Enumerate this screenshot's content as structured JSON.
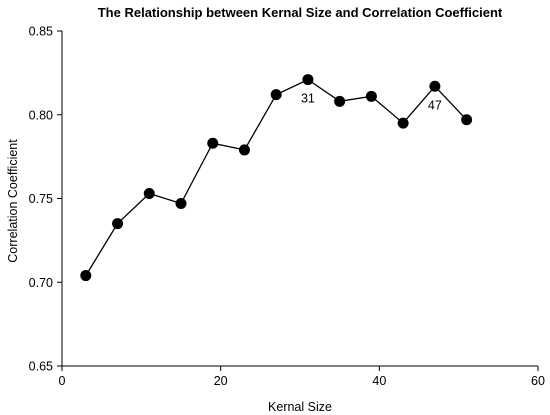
{
  "chart_data": {
    "type": "line",
    "title": "The Relationship between Kernal Size and Correlation Coefficient",
    "xlabel": "Kernal Size",
    "ylabel": "Correlation Coefficient",
    "xlim": [
      0,
      60
    ],
    "ylim": [
      0.65,
      0.85
    ],
    "xticks": [
      0,
      20,
      40,
      60
    ],
    "xtick_labels": [
      "0",
      "20",
      "40",
      "60"
    ],
    "yticks": [
      0.65,
      0.7,
      0.75,
      0.8,
      0.85
    ],
    "ytick_labels": [
      "0.65",
      "0.70",
      "0.75",
      "0.80",
      "0.85"
    ],
    "grid": false,
    "series": [
      {
        "x": [
          3,
          7,
          11,
          15,
          19,
          23,
          27,
          31,
          35,
          39,
          43,
          47,
          51
        ],
        "y": [
          0.704,
          0.735,
          0.753,
          0.747,
          0.783,
          0.779,
          0.812,
          0.821,
          0.808,
          0.811,
          0.795,
          0.817,
          0.797
        ],
        "color": "#000000"
      }
    ],
    "annotations": [
      {
        "text": "31",
        "x": 31,
        "y": 0.821
      },
      {
        "text": "47",
        "x": 47,
        "y": 0.817
      }
    ]
  }
}
